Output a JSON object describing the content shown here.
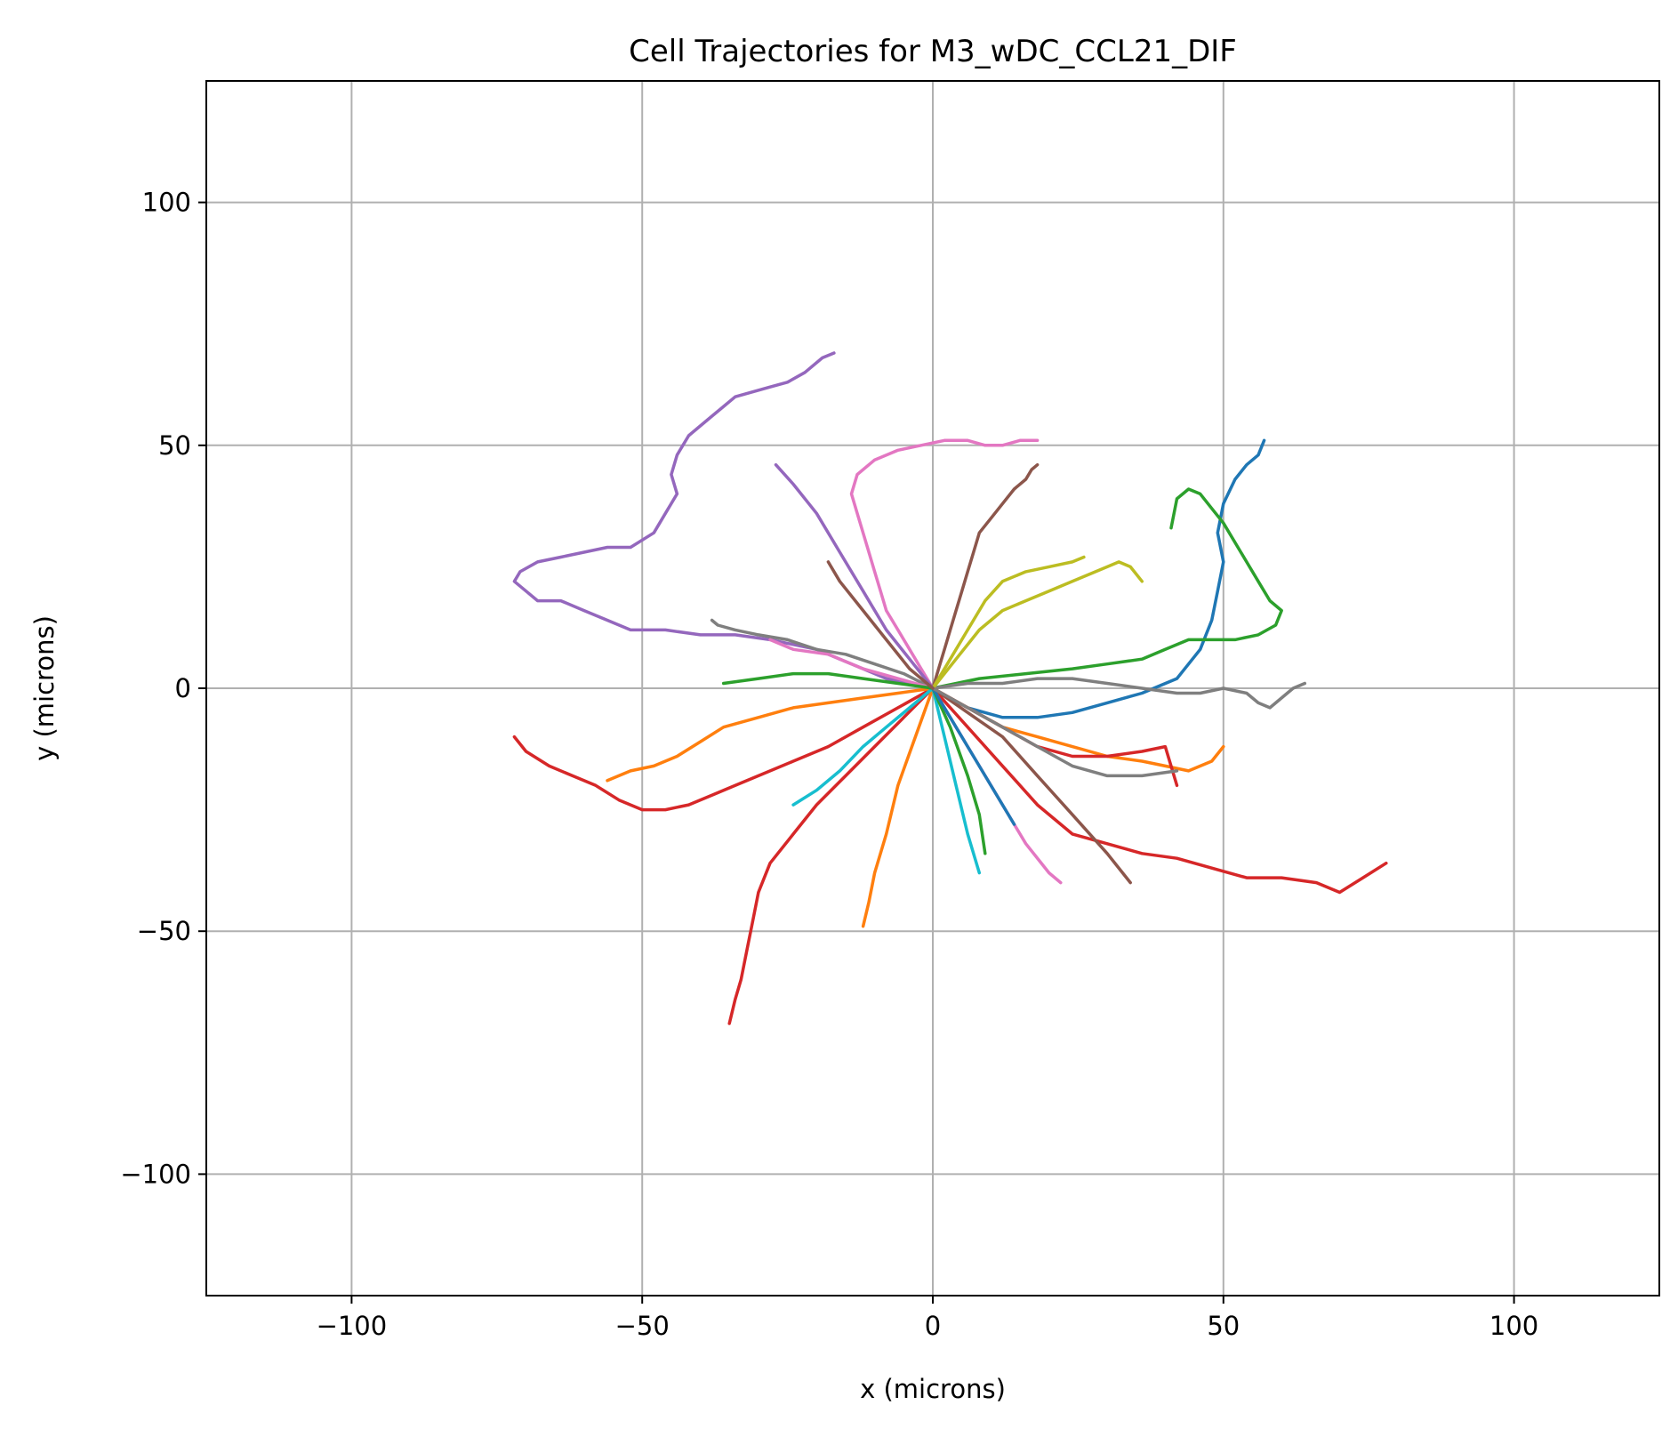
{
  "chart_data": {
    "type": "line",
    "title": "Cell Trajectories for M3_wDC_CCL21_DIF",
    "xlabel": "x (microns)",
    "ylabel": "y (microns)",
    "xlim": [
      -125,
      125
    ],
    "ylim": [
      -125,
      125
    ],
    "xticks": [
      -100,
      -50,
      0,
      50,
      100
    ],
    "yticks": [
      -100,
      -50,
      0,
      50,
      100
    ],
    "xtick_labels": [
      "−100",
      "−50",
      "0",
      "50",
      "100"
    ],
    "ytick_labels": [
      "−100",
      "−50",
      "0",
      "50",
      "100"
    ],
    "grid": true,
    "legend": "none",
    "series": [
      {
        "color": "#9467bd",
        "x": [
          0,
          -4,
          -8,
          -12,
          -16,
          -20,
          -24,
          -28,
          -34,
          -40,
          -46,
          -52,
          -56,
          -60,
          -64,
          -68,
          -70,
          -72,
          -71,
          -68,
          -64,
          -60,
          -56,
          -52,
          -48,
          -46,
          -44,
          -45,
          -44,
          -42,
          -40,
          -38,
          -36,
          -34,
          -31,
          -28,
          -25,
          -22,
          -19,
          -17
        ],
        "y": [
          0,
          1,
          2,
          4,
          6,
          8,
          9,
          10,
          11,
          11,
          12,
          12,
          14,
          16,
          18,
          18,
          20,
          22,
          24,
          26,
          27,
          28,
          29,
          29,
          32,
          36,
          40,
          44,
          48,
          52,
          54,
          56,
          58,
          60,
          61,
          62,
          63,
          65,
          68,
          69
        ]
      },
      {
        "color": "#e377c2",
        "x": [
          0,
          -2,
          -4,
          -6,
          -8,
          -9,
          -10,
          -11,
          -12,
          -13,
          -14,
          -13,
          -10,
          -6,
          -2,
          2,
          6,
          9,
          12,
          15,
          18
        ],
        "y": [
          0,
          4,
          8,
          12,
          16,
          20,
          24,
          28,
          32,
          36,
          40,
          44,
          47,
          49,
          50,
          51,
          51,
          50,
          50,
          51,
          51
        ]
      },
      {
        "color": "#8c564b",
        "x": [
          0,
          1,
          2,
          3,
          4,
          5,
          6,
          7,
          8,
          10,
          12,
          14,
          16,
          17,
          18
        ],
        "y": [
          0,
          4,
          8,
          12,
          16,
          20,
          24,
          28,
          32,
          35,
          38,
          41,
          43,
          45,
          46
        ]
      },
      {
        "color": "#1f77b4",
        "x": [
          0,
          6,
          12,
          18,
          24,
          30,
          36,
          42,
          46,
          48,
          49,
          50,
          49,
          50,
          52,
          54,
          56,
          57
        ],
        "y": [
          0,
          -4,
          -6,
          -6,
          -5,
          -3,
          -1,
          2,
          8,
          14,
          20,
          26,
          32,
          38,
          43,
          46,
          48,
          51
        ]
      },
      {
        "color": "#2ca02c",
        "x": [
          0,
          8,
          16,
          24,
          30,
          36,
          40,
          44,
          48,
          52,
          56,
          59,
          60,
          58,
          56,
          54,
          52,
          50,
          48,
          46,
          44,
          42,
          41
        ],
        "y": [
          0,
          2,
          3,
          4,
          5,
          6,
          8,
          10,
          10,
          10,
          11,
          13,
          16,
          18,
          22,
          26,
          30,
          34,
          37,
          40,
          41,
          39,
          33
        ]
      },
      {
        "color": "#7f7f7f",
        "x": [
          0,
          6,
          12,
          18,
          24,
          30,
          36,
          42,
          46,
          50,
          54,
          56,
          58,
          60,
          62,
          64
        ],
        "y": [
          0,
          1,
          1,
          2,
          2,
          1,
          0,
          -1,
          -1,
          0,
          -1,
          -3,
          -4,
          -2,
          0,
          1
        ]
      },
      {
        "color": "#7f7f7f",
        "x": [
          0,
          -5,
          -10,
          -15,
          -20,
          -25,
          -30,
          -34,
          -37,
          -38
        ],
        "y": [
          0,
          3,
          5,
          7,
          8,
          10,
          11,
          12,
          13,
          14
        ]
      },
      {
        "color": "#d62728",
        "x": [
          0,
          -6,
          -12,
          -18,
          -24,
          -30,
          -34,
          -38,
          -42,
          -46,
          -50,
          -54,
          -58,
          -62,
          -66,
          -70,
          -72
        ],
        "y": [
          0,
          -4,
          -8,
          -12,
          -15,
          -18,
          -20,
          -22,
          -24,
          -25,
          -25,
          -23,
          -20,
          -18,
          -16,
          -13,
          -10
        ]
      },
      {
        "color": "#d62728",
        "x": [
          0,
          -5,
          -10,
          -15,
          -20,
          -24,
          -28,
          -30,
          -31,
          -32,
          -33,
          -34,
          -35
        ],
        "y": [
          0,
          -6,
          -12,
          -18,
          -24,
          -30,
          -36,
          -42,
          -48,
          -54,
          -60,
          -64,
          -69
        ]
      },
      {
        "color": "#d62728",
        "x": [
          0,
          6,
          12,
          18,
          24,
          30,
          36,
          42,
          48,
          54,
          60,
          66,
          70,
          74,
          78
        ],
        "y": [
          0,
          -8,
          -16,
          -24,
          -30,
          -32,
          -34,
          -35,
          -37,
          -39,
          -39,
          -40,
          -42,
          -39,
          -36
        ]
      },
      {
        "color": "#ff7f0e",
        "x": [
          0,
          -6,
          -12,
          -18,
          -24,
          -30,
          -36,
          -40,
          -44,
          -48,
          -52,
          -56
        ],
        "y": [
          0,
          -1,
          -2,
          -3,
          -4,
          -6,
          -8,
          -11,
          -14,
          -16,
          -17,
          -19
        ]
      },
      {
        "color": "#ff7f0e",
        "x": [
          0,
          6,
          12,
          18,
          24,
          30,
          36,
          40,
          44,
          48,
          50
        ],
        "y": [
          0,
          -4,
          -8,
          -10,
          -12,
          -14,
          -15,
          -16,
          -17,
          -15,
          -12
        ]
      },
      {
        "color": "#ff7f0e",
        "x": [
          0,
          -3,
          -6,
          -8,
          -10,
          -11,
          -12
        ],
        "y": [
          0,
          -10,
          -20,
          -30,
          -38,
          -44,
          -49
        ]
      },
      {
        "color": "#bcbd22",
        "x": [
          0,
          4,
          8,
          12,
          16,
          20,
          24,
          28,
          32,
          34,
          36
        ],
        "y": [
          0,
          6,
          12,
          16,
          18,
          20,
          22,
          24,
          26,
          25,
          22
        ]
      },
      {
        "color": "#bcbd22",
        "x": [
          0,
          3,
          6,
          9,
          12,
          16,
          20,
          24,
          26
        ],
        "y": [
          0,
          6,
          12,
          18,
          22,
          24,
          25,
          26,
          27
        ]
      },
      {
        "color": "#17becf",
        "x": [
          0,
          -4,
          -8,
          -12,
          -16,
          -20,
          -24
        ],
        "y": [
          0,
          -4,
          -8,
          -12,
          -17,
          -21,
          -24
        ]
      },
      {
        "color": "#17becf",
        "x": [
          0,
          2,
          4,
          6,
          8
        ],
        "y": [
          0,
          -10,
          -20,
          -30,
          -38
        ]
      },
      {
        "color": "#e377c2",
        "x": [
          0,
          4,
          8,
          12,
          16,
          20,
          22
        ],
        "y": [
          0,
          -8,
          -16,
          -24,
          -32,
          -38,
          -40
        ]
      },
      {
        "color": "#e377c2",
        "x": [
          0,
          -6,
          -12,
          -18,
          -24,
          -28
        ],
        "y": [
          0,
          2,
          4,
          7,
          8,
          10
        ]
      },
      {
        "color": "#8c564b",
        "x": [
          0,
          6,
          12,
          18,
          24,
          30,
          34
        ],
        "y": [
          0,
          -5,
          -10,
          -18,
          -26,
          -34,
          -40
        ]
      },
      {
        "color": "#2ca02c",
        "x": [
          0,
          -6,
          -12,
          -18,
          -24,
          -30,
          -36
        ],
        "y": [
          0,
          1,
          2,
          3,
          3,
          2,
          1
        ]
      },
      {
        "color": "#9467bd",
        "x": [
          0,
          -4,
          -8,
          -12,
          -16,
          -20,
          -24,
          -27
        ],
        "y": [
          0,
          6,
          12,
          20,
          28,
          36,
          42,
          46
        ]
      },
      {
        "color": "#2ca02c",
        "x": [
          0,
          3,
          6,
          8,
          9
        ],
        "y": [
          0,
          -8,
          -18,
          -26,
          -34
        ]
      },
      {
        "color": "#1f77b4",
        "x": [
          0,
          3,
          6,
          9,
          12,
          14
        ],
        "y": [
          0,
          -6,
          -12,
          -18,
          -24,
          -28
        ]
      },
      {
        "color": "#d62728",
        "x": [
          0,
          6,
          12,
          18,
          24,
          30,
          36,
          40,
          42
        ],
        "y": [
          0,
          -4,
          -8,
          -12,
          -14,
          -14,
          -13,
          -12,
          -20
        ]
      },
      {
        "color": "#7f7f7f",
        "x": [
          0,
          6,
          12,
          18,
          24,
          30,
          36,
          42
        ],
        "y": [
          0,
          -4,
          -8,
          -12,
          -16,
          -18,
          -18,
          -17
        ]
      },
      {
        "color": "#8c564b",
        "x": [
          0,
          -4,
          -8,
          -12,
          -16,
          -18
        ],
        "y": [
          0,
          4,
          10,
          16,
          22,
          26
        ]
      }
    ]
  }
}
